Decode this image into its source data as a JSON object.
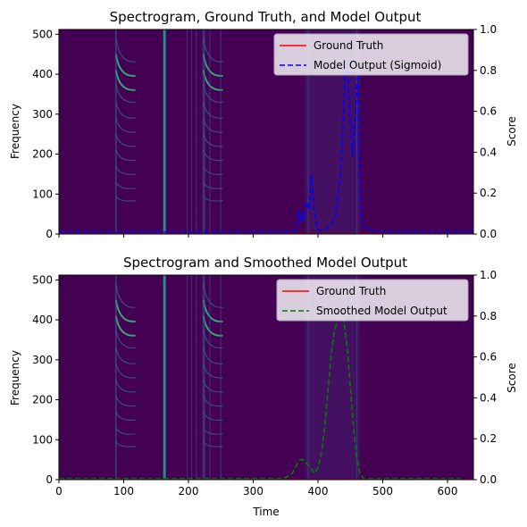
{
  "chart_data": [
    {
      "type": "line",
      "title": "Spectrogram, Ground Truth, and Model Output",
      "xlabel": "",
      "ylabel": "Frequency",
      "y2label": "Score",
      "xlim": [
        0,
        640
      ],
      "ylim": [
        0,
        512
      ],
      "y2lim": [
        0,
        1.0
      ],
      "x_ticks_labeled": false,
      "yticks": [
        0,
        100,
        200,
        300,
        400,
        500
      ],
      "y2ticks": [
        "0.0",
        "0.2",
        "0.4",
        "0.6",
        "0.8",
        "1.0"
      ],
      "legend": "top-right",
      "series": [
        {
          "name": "Ground Truth",
          "color": "#ff0000",
          "style": "solid",
          "x": [
            0,
            640
          ],
          "y": [
            0,
            0
          ]
        },
        {
          "name": "Model Output (Sigmoid)",
          "color": "#0000ff",
          "style": "dashed",
          "x": [
            0,
            350,
            366,
            368,
            370,
            372,
            374,
            376,
            378,
            380,
            382,
            384,
            386,
            388,
            390,
            392,
            394,
            396,
            398,
            400,
            410,
            420,
            426,
            430,
            432,
            434,
            436,
            438,
            440,
            442,
            444,
            446,
            448,
            450,
            452,
            454,
            456,
            458,
            460,
            462,
            464,
            466,
            470,
            480,
            500,
            640
          ],
          "y": [
            0.01,
            0.01,
            0.02,
            0.05,
            0.12,
            0.08,
            0.06,
            0.1,
            0.07,
            0.12,
            0.16,
            0.14,
            0.12,
            0.22,
            0.29,
            0.2,
            0.12,
            0.08,
            0.04,
            0.02,
            0.02,
            0.04,
            0.08,
            0.15,
            0.22,
            0.28,
            0.36,
            0.48,
            0.62,
            0.78,
            0.85,
            0.8,
            0.62,
            0.55,
            0.45,
            0.38,
            0.5,
            0.6,
            0.72,
            0.78,
            0.35,
            0.12,
            0.04,
            0.02,
            0.01,
            0.01
          ]
        }
      ],
      "spectrogram": {
        "background": "#440154",
        "harmonic_groups_start_x": [
          88,
          223
        ],
        "harmonic_group_width": 30,
        "harmonic_start_freqs": [
          490,
          450,
          410,
          375,
          330,
          290,
          250,
          210,
          170,
          130,
          95
        ],
        "transient_lines_x": [
          163,
          198,
          205,
          212,
          225,
          233,
          250,
          385,
          460
        ],
        "dense_region": [
          380,
          465
        ]
      }
    },
    {
      "type": "line",
      "title": "Spectrogram and Smoothed Model Output",
      "xlabel": "Time",
      "ylabel": "Frequency",
      "y2label": "Score",
      "xlim": [
        0,
        640
      ],
      "ylim": [
        0,
        512
      ],
      "y2lim": [
        0,
        1.0
      ],
      "xticks": [
        0,
        100,
        200,
        300,
        400,
        500,
        600
      ],
      "yticks": [
        0,
        100,
        200,
        300,
        400,
        500
      ],
      "y2ticks": [
        "0.0",
        "0.2",
        "0.4",
        "0.6",
        "0.8",
        "1.0"
      ],
      "legend": "top-right",
      "series": [
        {
          "name": "Ground Truth",
          "color": "#ff0000",
          "style": "solid",
          "x": [
            0,
            640
          ],
          "y": [
            0,
            0
          ]
        },
        {
          "name": "Smoothed Model Output",
          "color": "#008000",
          "style": "dashed",
          "x": [
            0,
            340,
            350,
            360,
            365,
            370,
            375,
            380,
            385,
            390,
            395,
            400,
            405,
            410,
            415,
            420,
            425,
            430,
            435,
            440,
            445,
            450,
            455,
            460,
            465,
            470,
            480,
            500,
            620
          ],
          "y": [
            0.005,
            0.005,
            0.01,
            0.03,
            0.06,
            0.09,
            0.1,
            0.09,
            0.07,
            0.05,
            0.03,
            0.06,
            0.12,
            0.25,
            0.42,
            0.6,
            0.72,
            0.78,
            0.8,
            0.78,
            0.65,
            0.45,
            0.25,
            0.1,
            0.03,
            0.005,
            0.005,
            0.005,
            0.005
          ]
        }
      ],
      "spectrogram": {
        "background": "#440154",
        "harmonic_groups_start_x": [
          88,
          223
        ],
        "harmonic_group_width": 30,
        "harmonic_start_freqs": [
          490,
          450,
          410,
          375,
          330,
          290,
          250,
          210,
          170,
          130,
          95
        ],
        "transient_lines_x": [
          163,
          198,
          205,
          212,
          225,
          233,
          250,
          385,
          460
        ],
        "dense_region": [
          380,
          465
        ]
      }
    }
  ]
}
